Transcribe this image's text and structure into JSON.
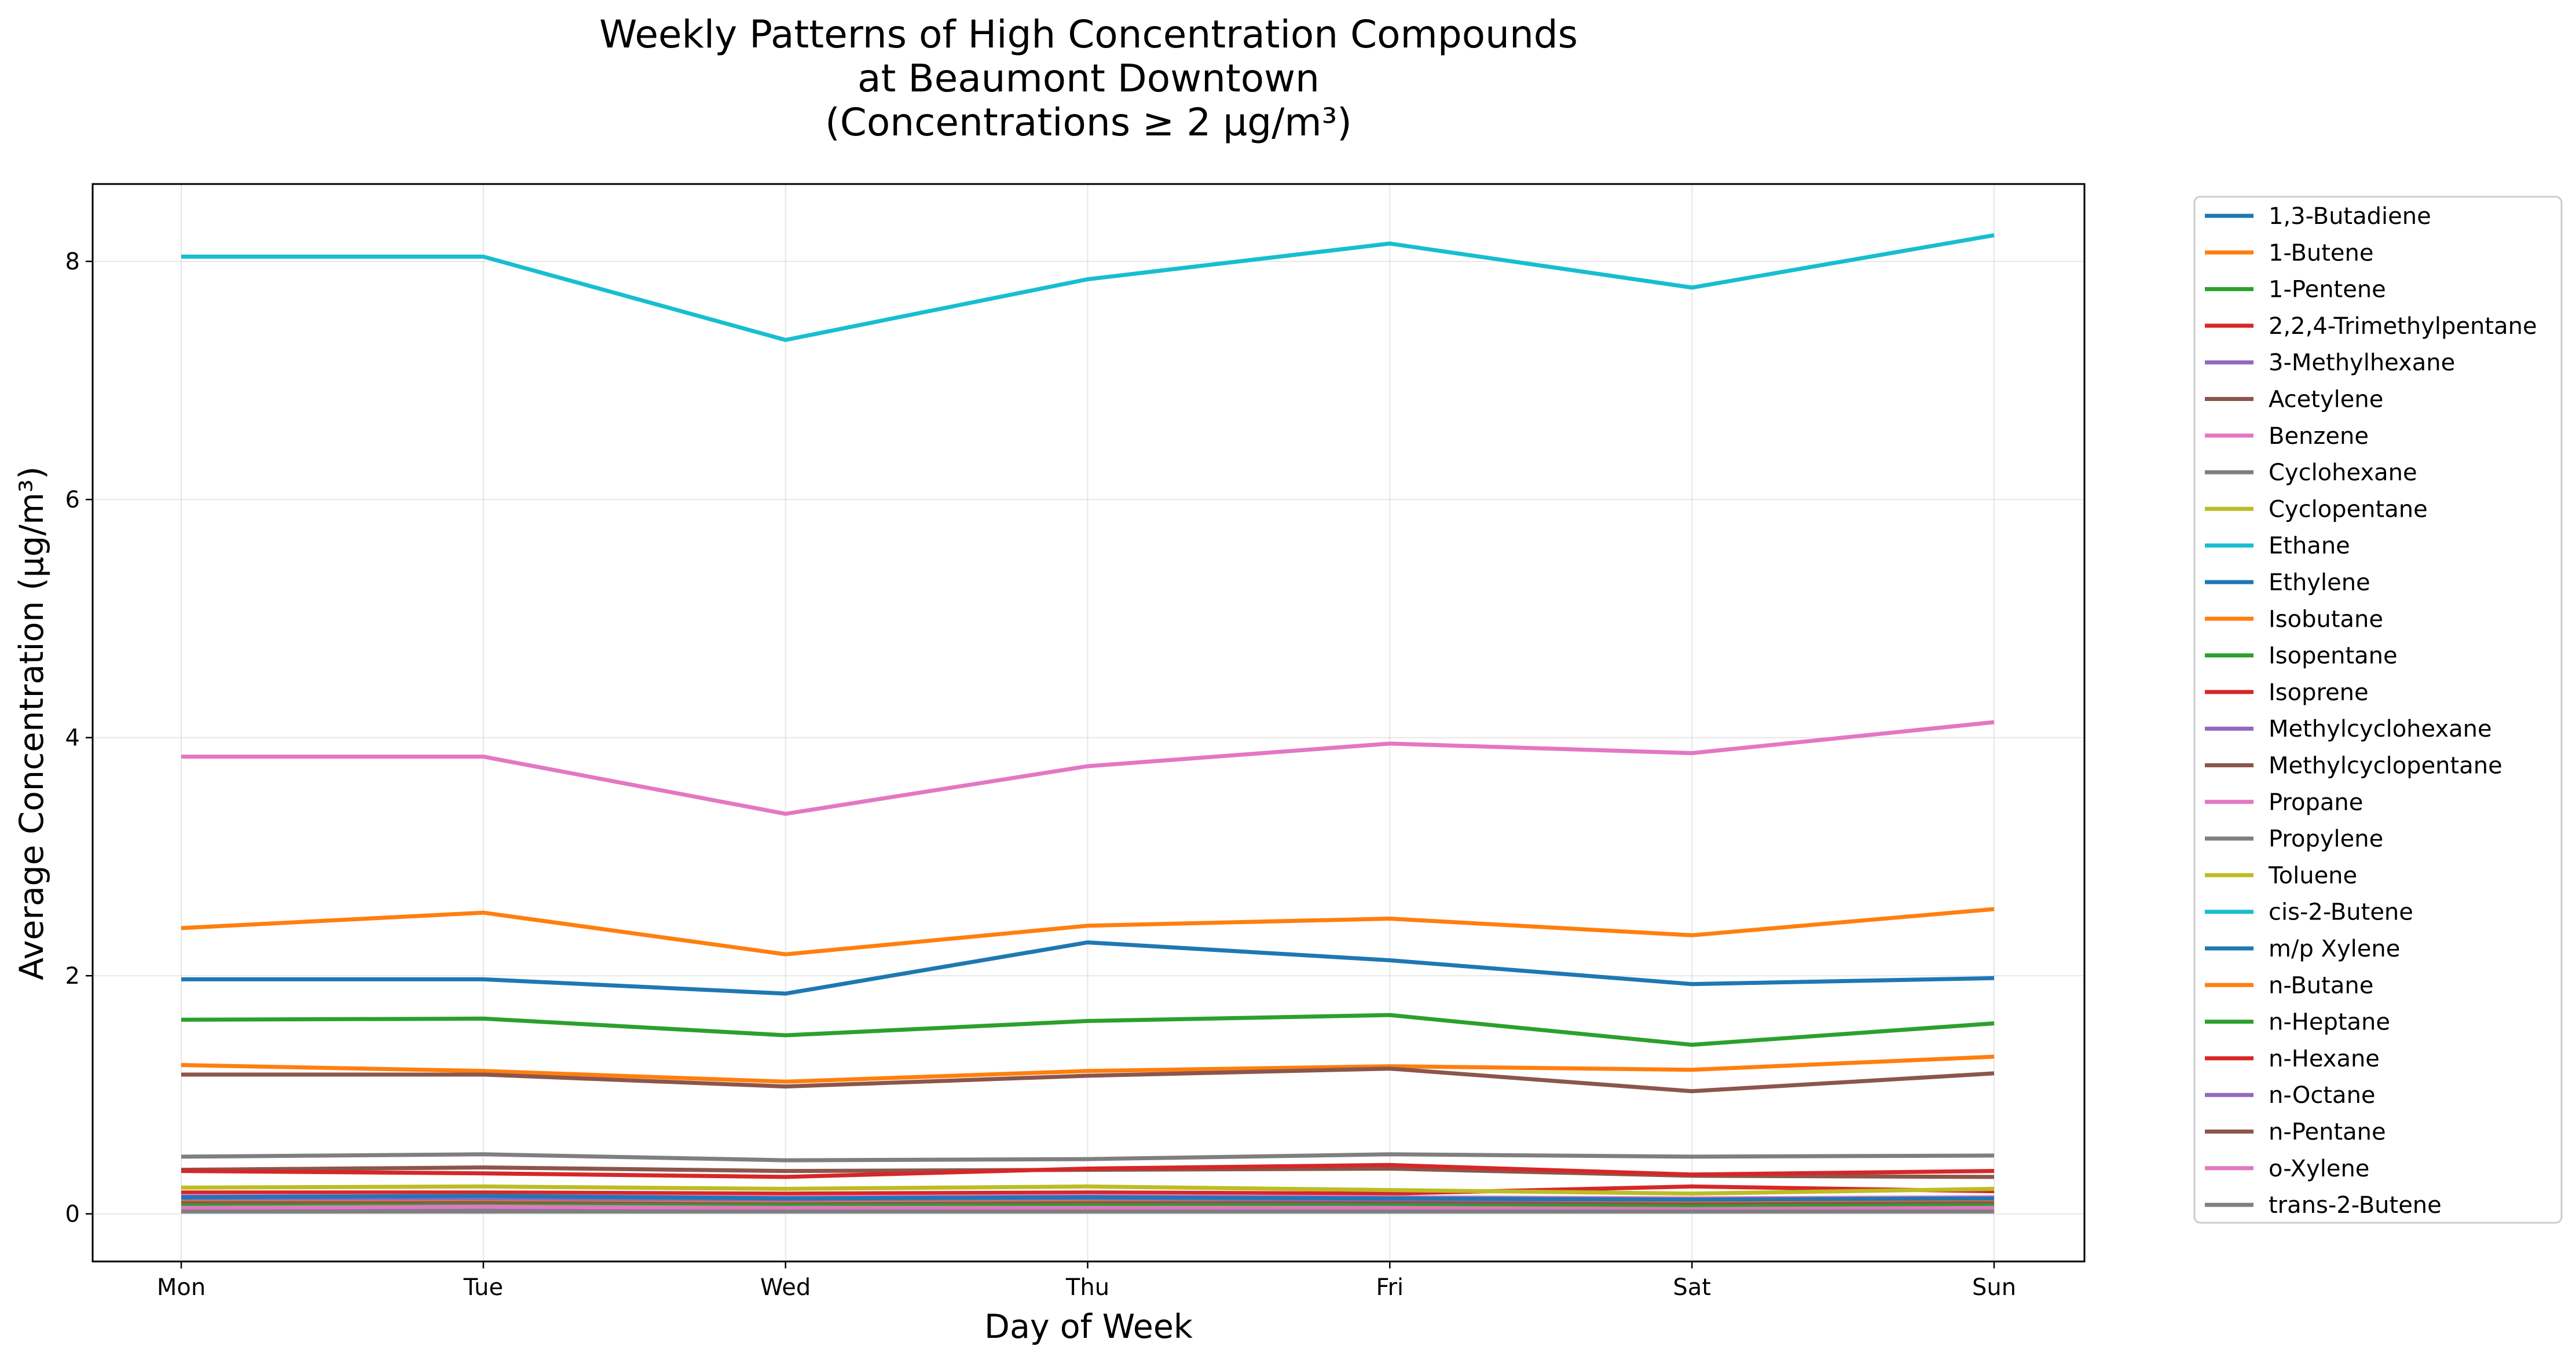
{
  "chart_data": {
    "type": "line",
    "title": [
      "Weekly Patterns of High Concentration Compounds",
      "at Beaumont Downtown",
      "(Concentrations ≥ 2 µg/m³)"
    ],
    "xlabel": "Day of Week",
    "ylabel": "Average Concentration (µg/m³)",
    "categories": [
      "Mon",
      "Tue",
      "Wed",
      "Thu",
      "Fri",
      "Sat",
      "Sun"
    ],
    "ylim": [
      -0.4,
      8.65
    ],
    "yticks": [
      0,
      2,
      4,
      6,
      8
    ],
    "grid": true,
    "legend_position": "outside-right",
    "series": [
      {
        "name": "1,3-Butadiene",
        "color": "#1f77b4",
        "values": [
          0.1,
          0.11,
          0.1,
          0.11,
          0.1,
          0.09,
          0.1
        ]
      },
      {
        "name": "1-Butene",
        "color": "#ff7f0e",
        "values": [
          0.12,
          0.12,
          0.11,
          0.12,
          0.12,
          0.11,
          0.12
        ]
      },
      {
        "name": "1-Pentene",
        "color": "#2ca02c",
        "values": [
          0.08,
          0.08,
          0.07,
          0.08,
          0.08,
          0.07,
          0.08
        ]
      },
      {
        "name": "2,2,4-Trimethylpentane",
        "color": "#d62728",
        "values": [
          0.18,
          0.18,
          0.17,
          0.18,
          0.17,
          0.23,
          0.19
        ]
      },
      {
        "name": "3-Methylhexane",
        "color": "#9467bd",
        "values": [
          0.13,
          0.13,
          0.12,
          0.13,
          0.12,
          0.12,
          0.13
        ]
      },
      {
        "name": "Acetylene",
        "color": "#8c564b",
        "values": [
          0.37,
          0.39,
          0.36,
          0.37,
          0.38,
          0.32,
          0.31
        ]
      },
      {
        "name": "Benzene",
        "color": "#e377c2",
        "values": [
          0.15,
          0.15,
          0.14,
          0.15,
          0.14,
          0.13,
          0.14
        ]
      },
      {
        "name": "Cyclohexane",
        "color": "#7f7f7f",
        "values": [
          0.06,
          0.06,
          0.06,
          0.06,
          0.06,
          0.05,
          0.06
        ]
      },
      {
        "name": "Cyclopentane",
        "color": "#bcbd22",
        "values": [
          0.04,
          0.04,
          0.04,
          0.04,
          0.04,
          0.04,
          0.04
        ]
      },
      {
        "name": "Ethane",
        "color": "#17becf",
        "values": [
          8.04,
          8.04,
          7.34,
          7.85,
          8.15,
          7.78,
          8.22
        ]
      },
      {
        "name": "Ethylene",
        "color": "#1f77b4",
        "values": [
          1.97,
          1.97,
          1.85,
          2.28,
          2.13,
          1.93,
          1.98
        ]
      },
      {
        "name": "Isobutane",
        "color": "#ff7f0e",
        "values": [
          2.4,
          2.53,
          2.18,
          2.42,
          2.48,
          2.34,
          2.56
        ]
      },
      {
        "name": "Isopentane",
        "color": "#2ca02c",
        "values": [
          1.63,
          1.64,
          1.5,
          1.62,
          1.67,
          1.42,
          1.6
        ]
      },
      {
        "name": "Isoprene",
        "color": "#d62728",
        "values": [
          0.03,
          0.03,
          0.03,
          0.04,
          0.04,
          0.03,
          0.03
        ]
      },
      {
        "name": "Methylcyclohexane",
        "color": "#9467bd",
        "values": [
          0.05,
          0.05,
          0.05,
          0.05,
          0.05,
          0.05,
          0.05
        ]
      },
      {
        "name": "Methylcyclopentane",
        "color": "#8c564b",
        "values": [
          0.09,
          0.09,
          0.08,
          0.09,
          0.09,
          0.08,
          0.09
        ]
      },
      {
        "name": "Propane",
        "color": "#e377c2",
        "values": [
          3.84,
          3.84,
          3.36,
          3.76,
          3.95,
          3.87,
          4.13
        ]
      },
      {
        "name": "Propylene",
        "color": "#7f7f7f",
        "values": [
          0.48,
          0.5,
          0.45,
          0.46,
          0.5,
          0.48,
          0.49
        ]
      },
      {
        "name": "Toluene",
        "color": "#bcbd22",
        "values": [
          0.22,
          0.23,
          0.21,
          0.23,
          0.2,
          0.17,
          0.21
        ]
      },
      {
        "name": "cis-2-Butene",
        "color": "#17becf",
        "values": [
          0.02,
          0.02,
          0.02,
          0.02,
          0.02,
          0.02,
          0.02
        ]
      },
      {
        "name": "m/p Xylene",
        "color": "#1f77b4",
        "values": [
          0.14,
          0.15,
          0.13,
          0.14,
          0.13,
          0.12,
          0.13
        ]
      },
      {
        "name": "n-Butane",
        "color": "#ff7f0e",
        "values": [
          1.25,
          1.2,
          1.11,
          1.2,
          1.24,
          1.21,
          1.32
        ]
      },
      {
        "name": "n-Heptane",
        "color": "#2ca02c",
        "values": [
          0.07,
          0.07,
          0.07,
          0.07,
          0.07,
          0.06,
          0.07
        ]
      },
      {
        "name": "n-Hexane",
        "color": "#d62728",
        "values": [
          0.36,
          0.34,
          0.31,
          0.38,
          0.41,
          0.33,
          0.36
        ]
      },
      {
        "name": "n-Octane",
        "color": "#9467bd",
        "values": [
          0.03,
          0.03,
          0.03,
          0.03,
          0.03,
          0.03,
          0.03
        ]
      },
      {
        "name": "n-Pentane",
        "color": "#8c564b",
        "values": [
          1.17,
          1.17,
          1.07,
          1.16,
          1.22,
          1.03,
          1.18
        ]
      },
      {
        "name": "o-Xylene",
        "color": "#e377c2",
        "values": [
          0.05,
          0.06,
          0.05,
          0.05,
          0.05,
          0.04,
          0.05
        ]
      },
      {
        "name": "trans-2-Butene",
        "color": "#7f7f7f",
        "values": [
          0.02,
          0.02,
          0.02,
          0.02,
          0.02,
          0.02,
          0.02
        ]
      }
    ]
  }
}
